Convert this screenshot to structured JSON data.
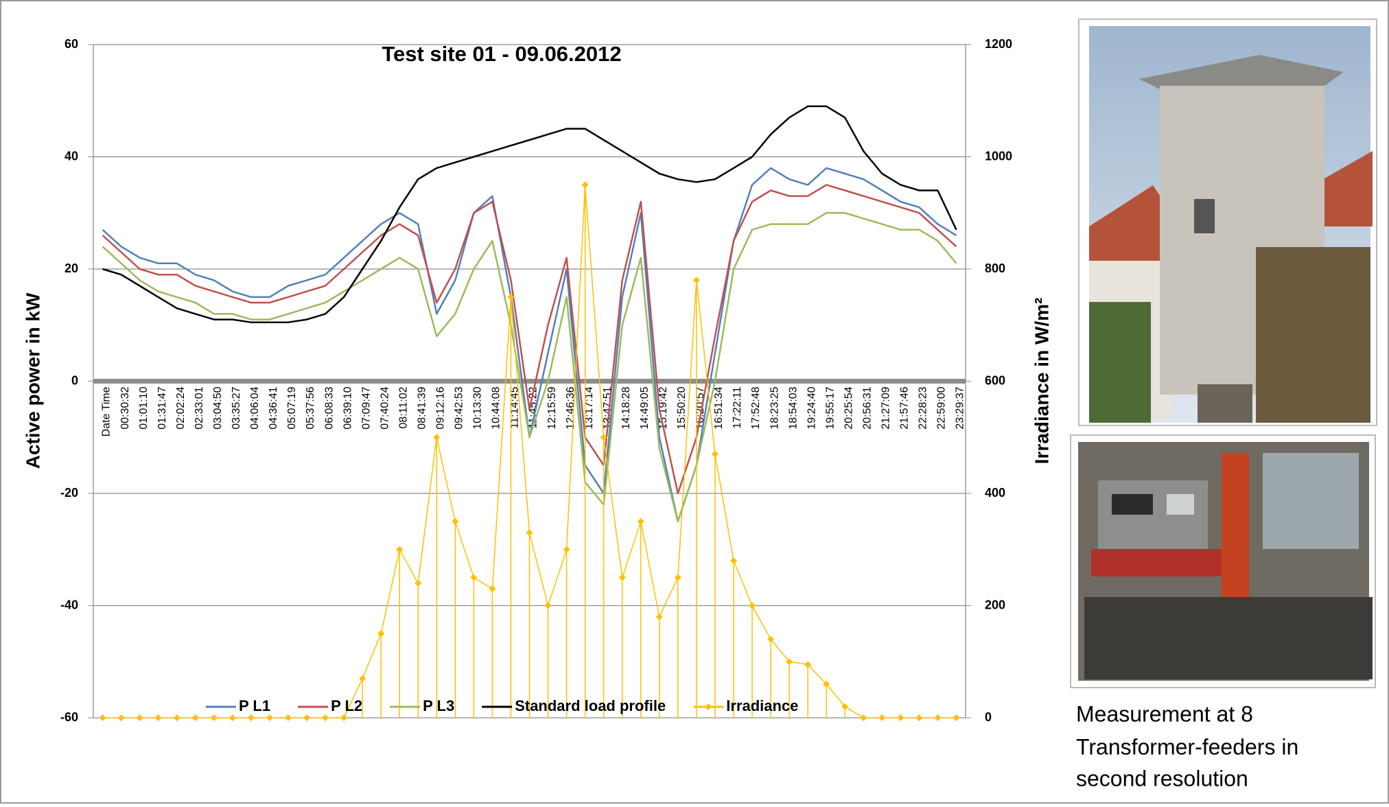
{
  "chart_data": {
    "type": "line",
    "title": "Test site 01 - 09.06.2012",
    "y_label": "Active power in kW",
    "y2_label": "Irradiance in W/m²",
    "categories": [
      "Date Time",
      "00:30:32",
      "01:01:10",
      "01:31:47",
      "02:02:24",
      "02:33:01",
      "03:04:50",
      "03:35:27",
      "04:06:04",
      "04:36:41",
      "05:07:19",
      "05:37:56",
      "06:08:33",
      "06:39:10",
      "07:09:47",
      "07:40:24",
      "08:11:02",
      "08:41:39",
      "09:12:16",
      "09:42:53",
      "10:13:30",
      "10:44:08",
      "11:14:45",
      "11:45:22",
      "12:15:59",
      "12:46:36",
      "13:17:14",
      "13:47:51",
      "14:18:28",
      "14:49:05",
      "15:19:42",
      "15:50:20",
      "16:20:57",
      "16:51:34",
      "17:22:11",
      "17:52:48",
      "18:23:25",
      "18:54:03",
      "19:24:40",
      "19:55:17",
      "20:25:54",
      "20:56:31",
      "21:27:09",
      "21:57:46",
      "22:28:23",
      "22:59:00",
      "23:29:37"
    ],
    "series": [
      {
        "name": "P L1",
        "color": "#4f81bd",
        "values": [
          27,
          24,
          22,
          21,
          21,
          19,
          18,
          16,
          15,
          15,
          17,
          18,
          19,
          22,
          25,
          28,
          30,
          28,
          12,
          18,
          30,
          33,
          15,
          -10,
          5,
          20,
          -15,
          -20,
          15,
          30,
          -10,
          -25,
          -15,
          5,
          25,
          35,
          38,
          36,
          35,
          38,
          37,
          36,
          34,
          32,
          31,
          28,
          26
        ]
      },
      {
        "name": "P L2",
        "color": "#c0504d",
        "values": [
          26,
          23,
          20,
          19,
          19,
          17,
          16,
          15,
          14,
          14,
          15,
          16,
          17,
          20,
          23,
          26,
          28,
          26,
          14,
          20,
          30,
          32,
          18,
          -5,
          10,
          22,
          -10,
          -15,
          18,
          32,
          -5,
          -20,
          -10,
          8,
          25,
          32,
          34,
          33,
          33,
          35,
          34,
          33,
          32,
          31,
          30,
          27,
          24
        ]
      },
      {
        "name": "P L3",
        "color": "#9bbb59",
        "values": [
          24,
          21,
          18,
          16,
          15,
          14,
          12,
          12,
          11,
          11,
          12,
          13,
          14,
          16,
          18,
          20,
          22,
          20,
          8,
          12,
          20,
          25,
          10,
          -10,
          0,
          15,
          -18,
          -22,
          10,
          22,
          -12,
          -25,
          -15,
          0,
          20,
          27,
          28,
          28,
          28,
          30,
          30,
          29,
          28,
          27,
          27,
          25,
          21
        ]
      },
      {
        "name": "Standard load profile",
        "color": "#000000",
        "values": [
          20,
          19,
          17,
          15,
          13,
          12,
          11,
          11,
          10.5,
          10.5,
          10.5,
          11,
          12,
          15,
          20,
          25,
          31,
          36,
          38,
          39,
          40,
          41,
          42,
          43,
          44,
          45,
          45,
          43,
          41,
          39,
          37,
          36,
          35.5,
          36,
          38,
          40,
          44,
          47,
          49,
          49,
          47,
          41,
          37,
          35,
          34,
          34,
          27
        ]
      },
      {
        "name": "Irradiance",
        "color": "#ffc000",
        "axis": "y2",
        "marker": "diamond",
        "drop_lines": true,
        "values": [
          0,
          0,
          0,
          0,
          0,
          0,
          0,
          0,
          0,
          0,
          0,
          0,
          0,
          0,
          70,
          150,
          300,
          240,
          500,
          350,
          250,
          230,
          750,
          330,
          200,
          300,
          950,
          500,
          250,
          350,
          180,
          250,
          780,
          470,
          280,
          200,
          140,
          100,
          95,
          60,
          20,
          0,
          0,
          0,
          0,
          0,
          0
        ]
      }
    ],
    "ylim": [
      -60,
      60
    ],
    "yticks": [
      -60,
      -40,
      -20,
      0,
      20,
      40,
      60
    ],
    "y2lim": [
      0,
      1200
    ],
    "y2ticks": [
      0,
      200,
      400,
      600,
      800,
      1000,
      1200
    ],
    "grid": true,
    "legend": "bottom"
  },
  "caption": {
    "lines": [
      "Measurement at  8",
      "Transformer-feeders in",
      "second resolution"
    ]
  }
}
